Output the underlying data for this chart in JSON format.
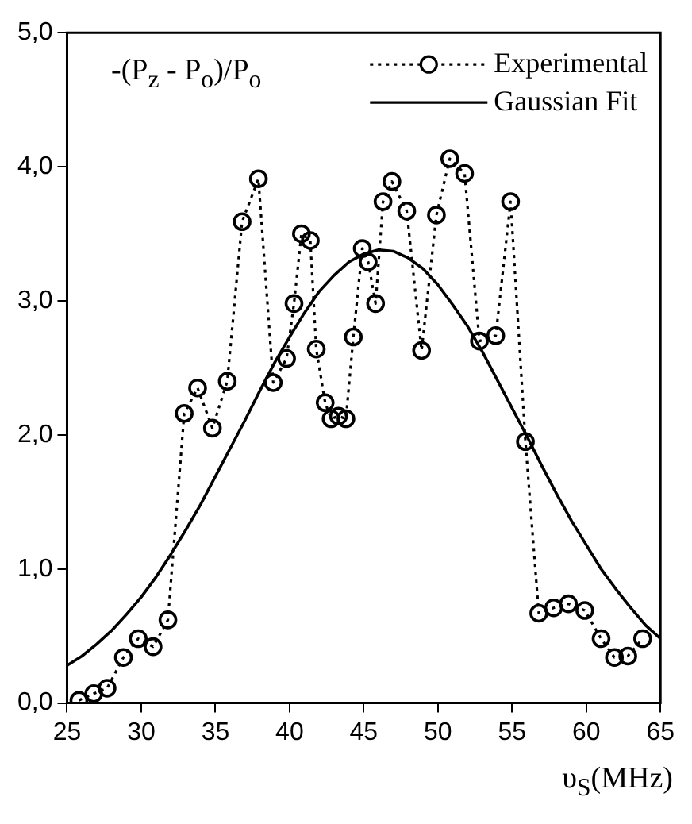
{
  "chart_data": {
    "type": "line",
    "ylabel": "-(P$_{z}$ - P$_{o}$)/P$_{o}$",
    "xlabel": "υ$_{S}$(MHz)",
    "xlim": [
      25,
      65
    ],
    "xticks": [
      25,
      30,
      35,
      40,
      45,
      50,
      55,
      60,
      65
    ],
    "ylim": [
      0,
      5
    ],
    "yticks": [
      {
        "value": 0,
        "label": "0,0"
      },
      {
        "value": 1,
        "label": "1,0"
      },
      {
        "value": 2,
        "label": "2,0"
      },
      {
        "value": 3,
        "label": "3,0"
      },
      {
        "value": 4,
        "label": "4,0"
      },
      {
        "value": 5,
        "label": "5,0"
      }
    ],
    "grid": false,
    "legend": "top right",
    "series": [
      {
        "name": "Experimental",
        "type": "line",
        "color": "#000000",
        "marker": "circle",
        "line_style": "dotted",
        "x": [
          25.8,
          26.8,
          27.7,
          28.8,
          29.8,
          30.8,
          31.8,
          32.9,
          33.8,
          34.8,
          35.8,
          36.8,
          37.9,
          38.9,
          39.8,
          40.3,
          40.8,
          41.4,
          41.8,
          42.4,
          42.8,
          43.3,
          43.8,
          44.3,
          44.9,
          45.3,
          45.8,
          46.3,
          46.9,
          47.9,
          48.9,
          49.9,
          50.8,
          51.8,
          52.8,
          53.9,
          54.9,
          55.9,
          56.8,
          57.8,
          58.8,
          59.9,
          61.0,
          61.9,
          62.8,
          63.8
        ],
        "values": [
          0.02,
          0.07,
          0.11,
          0.34,
          0.48,
          0.42,
          0.62,
          2.16,
          2.35,
          2.05,
          2.4,
          3.59,
          3.91,
          2.39,
          2.57,
          2.98,
          3.5,
          3.45,
          2.64,
          2.24,
          2.12,
          2.14,
          2.12,
          2.73,
          3.39,
          3.29,
          2.98,
          3.74,
          3.89,
          3.67,
          2.63,
          3.64,
          4.06,
          3.95,
          2.7,
          2.74,
          3.74,
          1.95,
          0.67,
          0.71,
          0.74,
          0.69,
          0.48,
          0.34,
          0.35,
          0.48
        ]
      },
      {
        "name": "Gaussian Fit",
        "type": "line",
        "color": "#000000",
        "marker": "none",
        "line_style": "solid",
        "x": [
          25,
          26,
          27,
          28,
          29,
          30,
          31,
          32,
          33,
          34,
          35,
          36,
          37,
          38,
          39,
          40,
          41,
          42,
          43,
          44,
          45,
          46,
          47,
          48,
          49,
          50,
          51,
          52,
          53,
          54,
          55,
          56,
          57,
          58,
          59,
          60,
          61,
          62,
          63,
          64,
          65
        ],
        "values": [
          0.28,
          0.35,
          0.44,
          0.54,
          0.66,
          0.79,
          0.94,
          1.11,
          1.29,
          1.48,
          1.69,
          1.9,
          2.11,
          2.33,
          2.54,
          2.73,
          2.91,
          3.07,
          3.19,
          3.29,
          3.35,
          3.38,
          3.37,
          3.32,
          3.24,
          3.12,
          2.97,
          2.81,
          2.62,
          2.41,
          2.2,
          1.99,
          1.77,
          1.56,
          1.36,
          1.18,
          1.0,
          0.85,
          0.71,
          0.58,
          0.48
        ]
      }
    ]
  }
}
